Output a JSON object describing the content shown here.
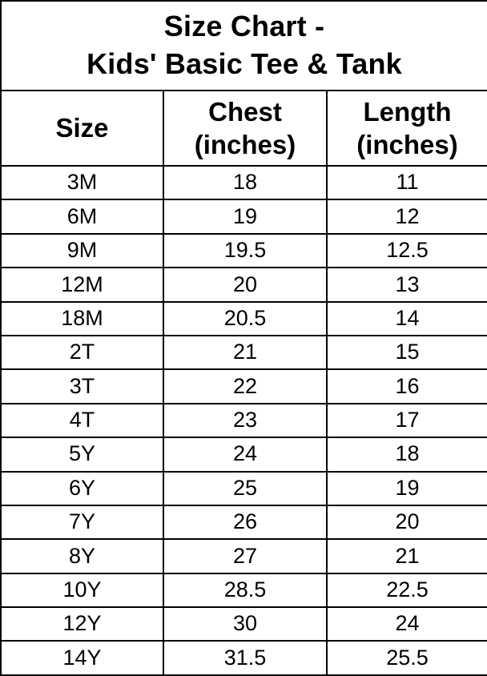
{
  "title": {
    "line1": "Size Chart -",
    "line2": "Kids' Basic Tee & Tank"
  },
  "chart_data": {
    "type": "table",
    "title": "Size Chart - Kids' Basic Tee & Tank",
    "columns": [
      "Size",
      "Chest (inches)",
      "Length (inches)"
    ],
    "rows": [
      [
        "3M",
        18,
        11
      ],
      [
        "6M",
        19,
        12
      ],
      [
        "9M",
        19.5,
        12.5
      ],
      [
        "12M",
        20,
        13
      ],
      [
        "18M",
        20.5,
        14
      ],
      [
        "2T",
        21,
        15
      ],
      [
        "3T",
        22,
        16
      ],
      [
        "4T",
        23,
        17
      ],
      [
        "5Y",
        24,
        18
      ],
      [
        "6Y",
        25,
        19
      ],
      [
        "7Y",
        26,
        20
      ],
      [
        "8Y",
        27,
        21
      ],
      [
        "10Y",
        28.5,
        22.5
      ],
      [
        "12Y",
        30,
        24
      ],
      [
        "14Y",
        31.5,
        25.5
      ]
    ],
    "layout": {
      "grid": true,
      "border_color": "#000000",
      "background": "#ffffff",
      "text_color": "#000000"
    }
  }
}
